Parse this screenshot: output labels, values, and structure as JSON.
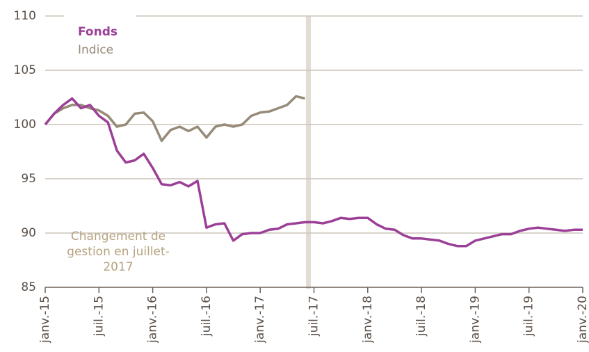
{
  "chart_data": {
    "type": "line",
    "annotation": "Changement de gestion en juillet-2017",
    "x": [
      "2015-01",
      "2015-02",
      "2015-03",
      "2015-04",
      "2015-05",
      "2015-06",
      "2015-07",
      "2015-08",
      "2015-09",
      "2015-10",
      "2015-11",
      "2015-12",
      "2016-01",
      "2016-02",
      "2016-03",
      "2016-04",
      "2016-05",
      "2016-06",
      "2016-07",
      "2016-08",
      "2016-09",
      "2016-10",
      "2016-11",
      "2016-12",
      "2017-01",
      "2017-02",
      "2017-03",
      "2017-04",
      "2017-05",
      "2017-06",
      "2017-07",
      "2017-08",
      "2017-09",
      "2017-10",
      "2017-11",
      "2017-12",
      "2018-01",
      "2018-02",
      "2018-03",
      "2018-04",
      "2018-05",
      "2018-06",
      "2018-07",
      "2018-08",
      "2018-09",
      "2018-10",
      "2018-11",
      "2018-12",
      "2019-01",
      "2019-02",
      "2019-03",
      "2019-04",
      "2019-05",
      "2019-06",
      "2019-07",
      "2019-08",
      "2019-09",
      "2019-10",
      "2019-11",
      "2019-12",
      "2020-01"
    ],
    "series": [
      {
        "name": "Fonds",
        "color": "#9b3f97",
        "values": [
          100,
          101,
          101.8,
          102.4,
          101.5,
          101.8,
          100.8,
          100.2,
          97.6,
          96.5,
          96.7,
          97.3,
          96.0,
          94.5,
          94.4,
          94.7,
          94.3,
          94.8,
          90.5,
          90.8,
          90.9,
          89.3,
          89.9,
          90.0,
          90.0,
          90.3,
          90.4,
          90.8,
          90.9,
          91.0,
          91.0,
          90.9,
          91.1,
          91.4,
          91.3,
          91.4,
          91.4,
          90.8,
          90.4,
          90.3,
          89.8,
          89.5,
          89.5,
          89.4,
          89.3,
          89.0,
          88.8,
          88.8,
          89.3,
          89.5,
          89.7,
          89.9,
          89.9,
          90.2,
          90.4,
          90.5,
          90.4,
          90.3,
          90.2,
          90.3,
          90.3
        ]
      },
      {
        "name": "Indice",
        "color": "#968a78",
        "values": [
          100,
          101,
          101.5,
          101.8,
          101.8,
          101.5,
          101.3,
          100.8,
          99.8,
          100.0,
          101.0,
          101.1,
          100.3,
          98.5,
          99.5,
          99.8,
          99.4,
          99.8,
          98.8,
          99.8,
          100.0,
          99.8,
          100.0,
          100.8,
          101.1,
          101.2,
          101.5,
          101.8,
          102.6,
          102.4,
          null,
          null,
          null,
          null,
          null,
          null,
          null,
          null,
          null,
          null,
          null,
          null,
          null,
          null,
          null,
          null,
          null,
          null,
          null,
          null,
          null,
          null,
          null,
          null,
          null,
          null,
          null,
          null,
          null,
          null,
          null
        ]
      }
    ],
    "xlim": [
      "2015-01",
      "2020-01"
    ],
    "xticks": [
      {
        "value": "2015-01",
        "label": "janv.-15"
      },
      {
        "value": "2015-07",
        "label": "juil.-15"
      },
      {
        "value": "2016-01",
        "label": "janv.-16"
      },
      {
        "value": "2016-07",
        "label": "juil.-16"
      },
      {
        "value": "2017-01",
        "label": "janv.-17"
      },
      {
        "value": "2017-07",
        "label": "juil.-17"
      },
      {
        "value": "2018-01",
        "label": "janv.-18"
      },
      {
        "value": "2018-07",
        "label": "juil.-18"
      },
      {
        "value": "2019-01",
        "label": "janv.-19"
      },
      {
        "value": "2019-07",
        "label": "juil.-19"
      },
      {
        "value": "2020-01",
        "label": "janv.-20"
      }
    ],
    "ylim": [
      85,
      110
    ],
    "yticks": [
      85,
      90,
      95,
      100,
      105,
      110
    ],
    "grid": true
  }
}
